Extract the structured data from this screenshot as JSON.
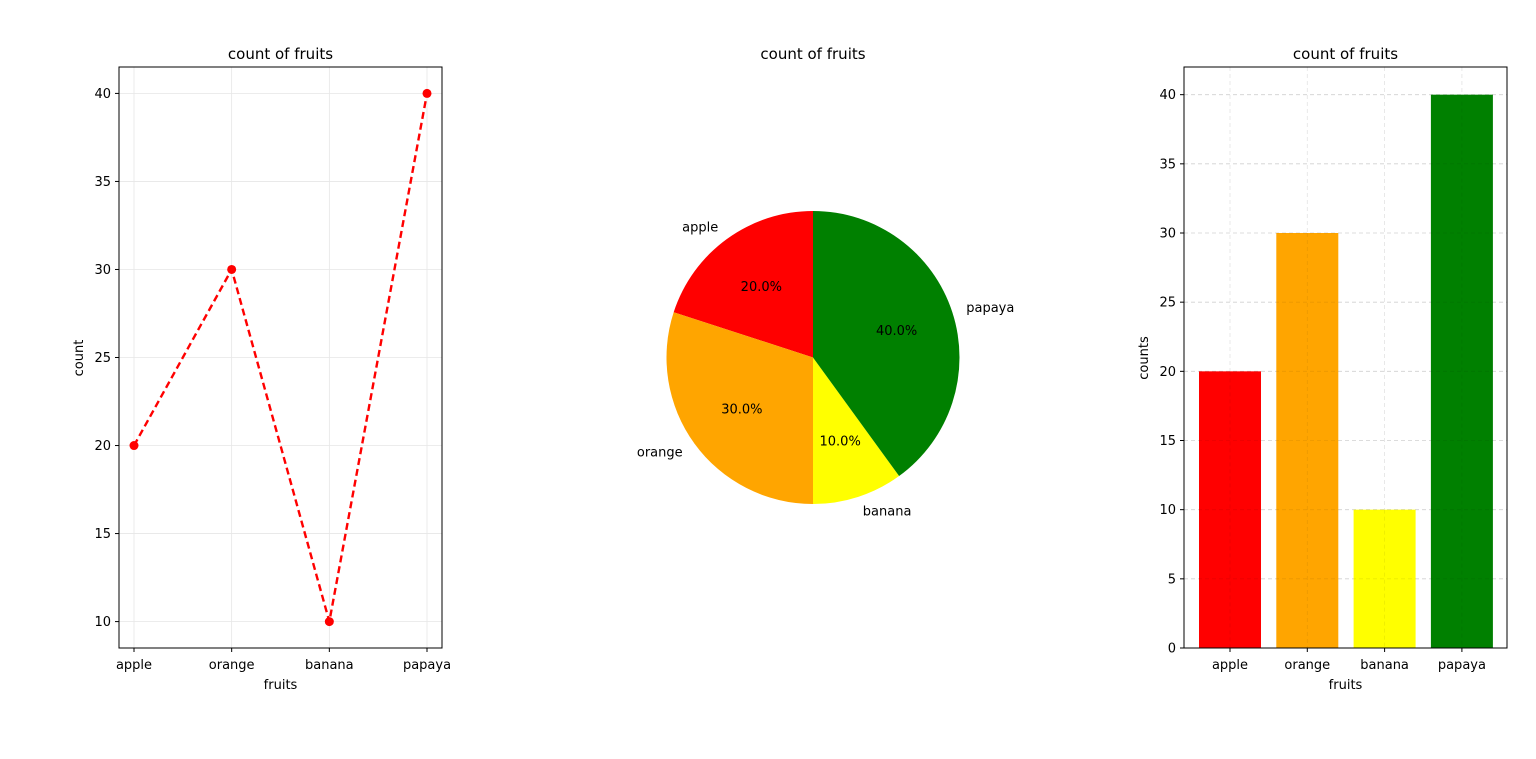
{
  "chart_data": [
    {
      "type": "line",
      "title": "count of fruits",
      "xlabel": "fruits",
      "ylabel": "count",
      "categories": [
        "apple",
        "orange",
        "banana",
        "papaya"
      ],
      "values": [
        20,
        30,
        10,
        40
      ],
      "yticks": [
        10,
        15,
        20,
        25,
        30,
        35,
        40
      ],
      "ylim": [
        8.5,
        41.5
      ],
      "line_style": "dashed",
      "marker": "circle",
      "color": "#ff0000",
      "grid": true
    },
    {
      "type": "pie",
      "title": "count of fruits",
      "categories": [
        "apple",
        "orange",
        "banana",
        "papaya"
      ],
      "values": [
        20,
        30,
        10,
        40
      ],
      "percent_labels": [
        "20.0%",
        "30.0%",
        "10.0%",
        "40.0%"
      ],
      "colors": [
        "#ff0000",
        "#ffa500",
        "#ffff00",
        "#008000"
      ],
      "start_angle": 90,
      "direction": "counterclockwise"
    },
    {
      "type": "bar",
      "title": "count of fruits",
      "xlabel": "fruits",
      "ylabel": "counts",
      "categories": [
        "apple",
        "orange",
        "banana",
        "papaya"
      ],
      "values": [
        20,
        30,
        10,
        40
      ],
      "yticks": [
        0,
        5,
        10,
        15,
        20,
        25,
        30,
        35,
        40
      ],
      "ylim": [
        0,
        42
      ],
      "colors": [
        "#ff0000",
        "#ffa500",
        "#ffff00",
        "#008000"
      ],
      "grid": true,
      "grid_style": "dashed"
    }
  ]
}
